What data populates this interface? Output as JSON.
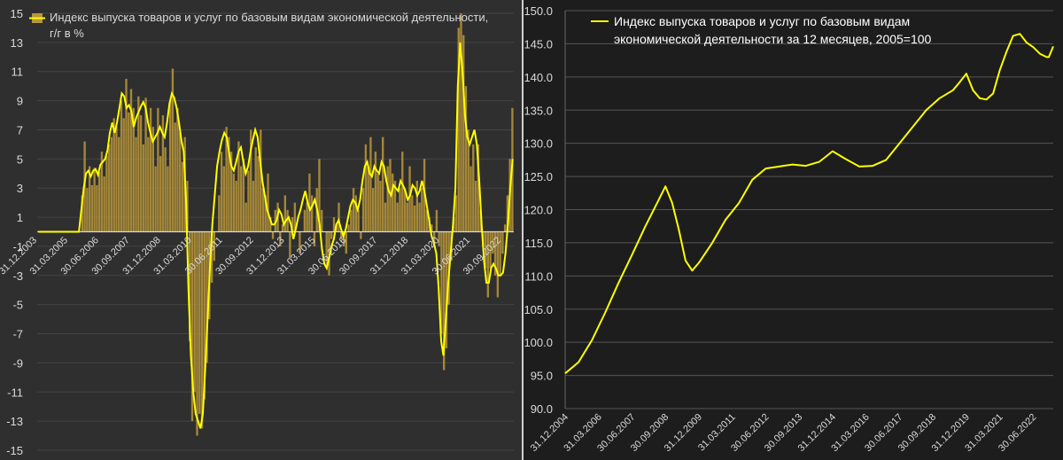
{
  "chart_data": [
    {
      "type": "bar+line",
      "legend": {
        "line1": "Индекс выпуска товаров и услуг по базовым видам экономической деятельности,",
        "line2": "г/г в %"
      },
      "ylim": [
        -15,
        15
      ],
      "yticks": [
        "15",
        "13",
        "11",
        "9",
        "7",
        "5",
        "3",
        "1",
        "-1",
        "-3",
        "-5",
        "-7",
        "-9",
        "-11",
        "-13",
        "-15"
      ],
      "xticks": [
        "31.12.2003",
        "31.03.2005",
        "30.06.2006",
        "30.09.2007",
        "31.12.2008",
        "31.03.2010",
        "30.06.2011",
        "30.09.2012",
        "31.12.2013",
        "31.03.2015",
        "30.06.2016",
        "30.09.2017",
        "31.12.2018",
        "31.03.2020",
        "30.06.2021",
        "30.09.2022"
      ],
      "x_start": "2003-12",
      "x_end": "2023-03",
      "colors": {
        "bars": "#b8963a",
        "line": "#ffff00",
        "zero": "#d9d9d9",
        "grid": "#444444",
        "background": "#2f2f2f"
      },
      "series": [
        {
          "kind": "bar",
          "values": [
            0,
            0,
            0,
            0,
            0,
            0,
            0,
            0,
            0,
            0,
            0,
            0,
            0,
            0,
            0,
            0,
            0,
            0,
            2.5,
            6.2,
            3,
            4.5,
            3.2,
            4.4,
            3.2,
            4.1,
            5.5,
            3.8,
            5.2,
            6,
            6.5,
            7.8,
            7.2,
            6.5,
            9,
            7.8,
            10.5,
            8.2,
            9.8,
            8.5,
            6.5,
            9.3,
            8,
            6,
            9.2,
            6.5,
            8.5,
            7.2,
            4.5,
            8.5,
            5.2,
            8,
            5.8,
            4.5,
            9,
            11.2,
            7.5,
            8.5,
            6.8,
            4.8,
            6.5,
            3.5,
            -7.5,
            -13,
            -11,
            -14,
            -12.5,
            -13.5,
            -11.5,
            -9,
            -6,
            -3.5,
            -2,
            0,
            2.5,
            5.5,
            4.5,
            7.2,
            6.5,
            5.5,
            4,
            3.5,
            6.2,
            4.5,
            5,
            2,
            4.2,
            7,
            3.5,
            5.8,
            5.2,
            7,
            3,
            2.5,
            4,
            1,
            -0.5,
            1.5,
            2,
            -1,
            0.5,
            2.5,
            1.5,
            -1.8,
            1,
            2,
            0,
            -1.5,
            0,
            1.5,
            2,
            4,
            2.5,
            -1,
            3,
            5,
            1.5,
            0,
            -2.5,
            -3,
            -0.5,
            1,
            0.5,
            2,
            -0.5,
            -1,
            -1.5,
            0.5,
            1.5,
            3,
            2.5,
            1.5,
            -0.5,
            3,
            6,
            4.5,
            6.5,
            3,
            5.5,
            4,
            3.5,
            6.5,
            2,
            4.5,
            5,
            4,
            3.5,
            2,
            3,
            5.5,
            3,
            2,
            4.5,
            2.5,
            1.8,
            3.5,
            2,
            3,
            5,
            1.5,
            1,
            0.5,
            -1,
            1.5,
            -1,
            -7,
            -9.5,
            -8,
            -5,
            -2,
            1,
            2.5,
            14,
            15,
            13.5,
            10,
            7,
            4.5,
            6,
            3.5,
            6,
            1.5,
            -1,
            -2.5,
            -4.5,
            -2.5,
            -1.5,
            -3,
            -4.5,
            -3,
            -1.5,
            0.5,
            2.5,
            5,
            8.5
          ]
        },
        {
          "kind": "line",
          "values": [
            0,
            0,
            0,
            0,
            0,
            0,
            0,
            0,
            0,
            0,
            0,
            0,
            0,
            0,
            0,
            0,
            0,
            0,
            1.5,
            3,
            4,
            4.2,
            3.8,
            4.2,
            4.3,
            3.9,
            4.6,
            4.8,
            5,
            5.6,
            6.8,
            7.5,
            6.8,
            7.5,
            8.5,
            9.5,
            9.3,
            8.5,
            8.7,
            8.3,
            7.2,
            7.8,
            8.2,
            8.6,
            8.9,
            8.5,
            7.5,
            6.8,
            6.2,
            6.5,
            6.8,
            7.2,
            6.8,
            6.5,
            7.5,
            8.8,
            9.5,
            9.2,
            8.5,
            7.5,
            6.3,
            5.5,
            2,
            -4,
            -8.5,
            -11,
            -12.5,
            -13,
            -13.5,
            -12.5,
            -9.5,
            -6,
            -2.5,
            0.5,
            2.5,
            4.5,
            5.5,
            6.3,
            6.8,
            6.5,
            5.5,
            4.5,
            4.2,
            4.8,
            5.5,
            5.8,
            4.8,
            4,
            4.5,
            5.5,
            6.3,
            7,
            6.5,
            5,
            3.5,
            2.5,
            1.5,
            1,
            0.5,
            0.5,
            0.8,
            1.5,
            1.2,
            0.5,
            0.8,
            1,
            0.5,
            -0.5,
            0.2,
            1,
            1.5,
            2.2,
            2.8,
            2,
            1.5,
            1.8,
            2.2,
            1.5,
            0.5,
            -1.2,
            -2.2,
            -2.5,
            -1.8,
            -1,
            -0.5,
            0.5,
            0.8,
            0.2,
            -0.3,
            0.2,
            1,
            1.8,
            2.2,
            2,
            1.5,
            2.2,
            3.5,
            4.5,
            4.8,
            4,
            3.8,
            4.5,
            4.2,
            4,
            4.8,
            4.5,
            3.5,
            2.8,
            2.5,
            3.2,
            3,
            2.8,
            3.5,
            3.2,
            2.8,
            2.2,
            2.5,
            3.2,
            3,
            2.5,
            2.8,
            3.5,
            2.8,
            1.8,
            0.8,
            -0.3,
            -0.8,
            -1.5,
            -4,
            -7.5,
            -8.5,
            -6,
            -3.5,
            -1.5,
            0.5,
            3,
            10,
            13,
            11,
            8,
            6.5,
            6,
            6.5,
            7,
            6,
            3.5,
            0.5,
            -2,
            -3.5,
            -3.5,
            -2.5,
            -2.2,
            -2.5,
            -3,
            -3,
            -2.8,
            -1.5,
            0.5,
            3,
            5
          ]
        }
      ]
    },
    {
      "type": "line",
      "legend": {
        "line1": "Индекс выпуска товаров и услуг по базовым видам",
        "line2": "экономической деятельности за 12 месяцев, 2005=100"
      },
      "ylim": [
        90,
        150
      ],
      "yticks": [
        "150.0",
        "145.0",
        "140.0",
        "135.0",
        "130.0",
        "125.0",
        "120.0",
        "115.0",
        "110.0",
        "105.0",
        "100.0",
        "95.0",
        "90.0"
      ],
      "xticks": [
        "31.12.2004",
        "31.03.2006",
        "30.06.2007",
        "30.09.2008",
        "31.12.2009",
        "31.03.2011",
        "30.06.2012",
        "30.09.2013",
        "31.12.2014",
        "31.03.2016",
        "30.06.2017",
        "30.09.2018",
        "31.12.2019",
        "31.03.2021",
        "30.06.2022"
      ],
      "x_start": "2004-12",
      "x_end": "2023-03",
      "colors": {
        "line": "#ffff00",
        "grid": "#555555",
        "background": "#1d1d1d"
      },
      "x": [
        "2004-12",
        "2005-06",
        "2005-12",
        "2006-06",
        "2006-12",
        "2007-06",
        "2007-12",
        "2008-06",
        "2008-09",
        "2008-12",
        "2009-03",
        "2009-06",
        "2009-09",
        "2009-12",
        "2010-06",
        "2010-12",
        "2011-06",
        "2011-12",
        "2012-06",
        "2012-12",
        "2013-06",
        "2013-12",
        "2014-06",
        "2014-09",
        "2014-12",
        "2015-06",
        "2015-12",
        "2016-06",
        "2016-12",
        "2017-06",
        "2017-12",
        "2018-06",
        "2018-12",
        "2019-06",
        "2019-09",
        "2019-12",
        "2020-03",
        "2020-06",
        "2020-09",
        "2020-12",
        "2021-03",
        "2021-06",
        "2021-09",
        "2021-12",
        "2022-03",
        "2022-06",
        "2022-09",
        "2022-12",
        "2023-01",
        "2023-02",
        "2023-03"
      ],
      "values": [
        95.3,
        97,
        100.3,
        104.5,
        109,
        113.2,
        117.5,
        121.5,
        123.5,
        121,
        117,
        112.3,
        110.8,
        112,
        115,
        118.5,
        121,
        124.5,
        126.2,
        126.5,
        126.8,
        126.6,
        127.2,
        128,
        128.8,
        127.6,
        126.5,
        126.6,
        127.5,
        130,
        132.5,
        135,
        136.8,
        138,
        139.2,
        140.5,
        138,
        136.8,
        136.6,
        137.5,
        141,
        143.8,
        146.2,
        146.5,
        145.2,
        144.5,
        143.5,
        143,
        143,
        143.8,
        144.6
      ]
    }
  ]
}
